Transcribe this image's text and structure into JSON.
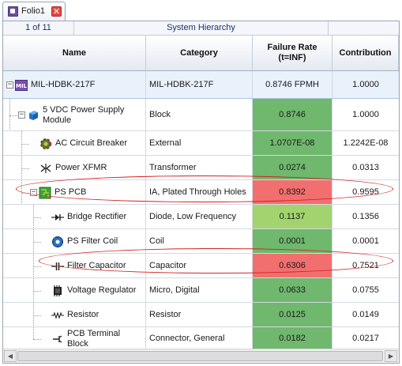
{
  "tab": {
    "label": "Folio1",
    "close": "✕"
  },
  "navbar": {
    "page": "1 of 11",
    "title": "System Hierarchy"
  },
  "columns": {
    "name": "Name",
    "category": "Category",
    "failure_rate_line1": "Failure Rate",
    "failure_rate_line2": "(t=INF)",
    "contribution": "Contribution"
  },
  "rows": [
    {
      "name": "MIL-HDBK-217F",
      "category": "MIL-HDBK-217F",
      "rate": "0.8746 FPMH",
      "contribution": "1.0000",
      "icon": "mil-hdbk-icon",
      "expander": "−"
    },
    {
      "name_line1": "5 VDC Power Supply",
      "name_line2": "Module",
      "category": "Block",
      "rate": "0.8746",
      "contribution": "1.0000",
      "icon": "block-icon",
      "expander": "−",
      "rate_color": "#6fb86e"
    },
    {
      "name": "AC Circuit Breaker",
      "category": "External",
      "rate": "1.0707E-08",
      "contribution": "1.2242E-08",
      "icon": "circuit-breaker-icon",
      "rate_color": "#6fb86e"
    },
    {
      "name": "Power XFMR",
      "category": "Transformer",
      "rate": "0.0274",
      "contribution": "0.0313",
      "icon": "transformer-icon",
      "rate_color": "#6fb86e"
    },
    {
      "name": "PS PCB",
      "category": "IA, Plated Through Holes",
      "rate": "0.8392",
      "contribution": "0.9595",
      "icon": "pcb-icon",
      "expander": "−",
      "rate_color": "#f26f6f"
    },
    {
      "name": "Bridge Rectifier",
      "category": "Diode, Low Frequency",
      "rate": "0.1137",
      "contribution": "0.1356",
      "icon": "diode-icon",
      "rate_color": "#a3d36f"
    },
    {
      "name": "PS Filter Coil",
      "category": "Coil",
      "rate": "0.0001",
      "contribution": "0.0001",
      "icon": "coil-icon",
      "rate_color": "#6fb86e"
    },
    {
      "name": "Filter Capacitor",
      "category": "Capacitor",
      "rate": "0.6306",
      "contribution": "0.7521",
      "icon": "capacitor-icon",
      "rate_color": "#f26f6f"
    },
    {
      "name": "Voltage Regulator",
      "category": "Micro, Digital",
      "rate": "0.0633",
      "contribution": "0.0755",
      "icon": "chip-icon",
      "rate_color": "#6fb86e"
    },
    {
      "name": "Resistor",
      "category": "Resistor",
      "rate": "0.0125",
      "contribution": "0.0149",
      "icon": "resistor-icon",
      "rate_color": "#6fb86e"
    },
    {
      "name_line1": "PCB Terminal",
      "name_line2": "Block",
      "category": "Connector, General",
      "rate": "0.0182",
      "contribution": "0.0217",
      "icon": "connector-icon",
      "rate_color": "#6fb86e"
    }
  ],
  "scrollbar": {
    "left": "◀",
    "right": "▶"
  }
}
